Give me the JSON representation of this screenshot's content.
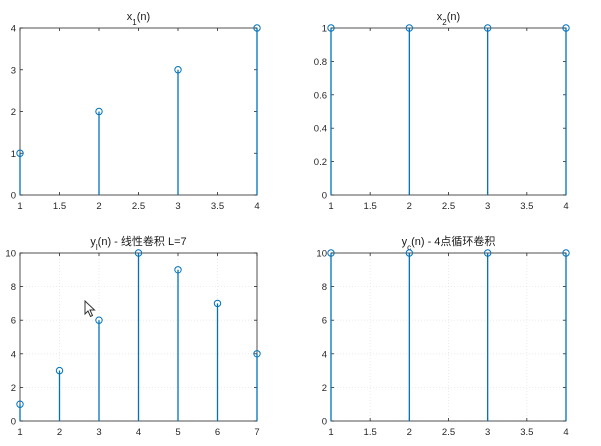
{
  "colors": {
    "stem": "#0072BD",
    "axis": "#262626",
    "grid": "#e6e6e6",
    "background": "#ffffff"
  },
  "chart_data": [
    {
      "type": "stem",
      "title": "x",
      "title_sub": "1",
      "title_tail": "(n)",
      "xlabel": "",
      "ylabel": "",
      "xlim": [
        1,
        4
      ],
      "ylim": [
        0,
        4
      ],
      "xticks": [
        "1",
        "1.5",
        "2",
        "2.5",
        "3",
        "3.5",
        "4"
      ],
      "yticks": [
        "0",
        "1",
        "2",
        "3",
        "4"
      ],
      "grid": false,
      "series": [
        {
          "x": [
            1,
            2,
            3,
            4
          ],
          "values": [
            1,
            2,
            3,
            4
          ]
        }
      ]
    },
    {
      "type": "stem",
      "title": "x",
      "title_sub": "2",
      "title_tail": "(n)",
      "xlabel": "",
      "ylabel": "",
      "xlim": [
        1,
        4
      ],
      "ylim": [
        0,
        1
      ],
      "xticks": [
        "1",
        "1.5",
        "2",
        "2.5",
        "3",
        "3.5",
        "4"
      ],
      "yticks": [
        "0",
        "0.2",
        "0.4",
        "0.6",
        "0.8",
        "1"
      ],
      "grid": false,
      "series": [
        {
          "x": [
            1,
            2,
            3,
            4
          ],
          "values": [
            1,
            1,
            1,
            1
          ]
        }
      ]
    },
    {
      "type": "stem",
      "title": "y",
      "title_sub": "l",
      "title_tail": "(n) - 线性卷积 L=7",
      "xlabel": "",
      "ylabel": "",
      "xlim": [
        1,
        7
      ],
      "ylim": [
        0,
        10
      ],
      "xticks": [
        "1",
        "2",
        "3",
        "4",
        "5",
        "6",
        "7"
      ],
      "yticks": [
        "0",
        "2",
        "4",
        "6",
        "8",
        "10"
      ],
      "grid": true,
      "series": [
        {
          "x": [
            1,
            2,
            3,
            4,
            5,
            6,
            7
          ],
          "values": [
            1,
            3,
            6,
            10,
            9,
            7,
            4
          ]
        }
      ]
    },
    {
      "type": "stem",
      "title": "y",
      "title_sub": "c",
      "title_tail": "(n) - 4点循环卷积",
      "xlabel": "",
      "ylabel": "",
      "xlim": [
        1,
        4
      ],
      "ylim": [
        0,
        10
      ],
      "xticks": [
        "1",
        "1.5",
        "2",
        "2.5",
        "3",
        "3.5",
        "4"
      ],
      "yticks": [
        "0",
        "2",
        "4",
        "6",
        "8",
        "10"
      ],
      "grid": true,
      "series": [
        {
          "x": [
            1,
            2,
            3,
            4
          ],
          "values": [
            10,
            10,
            10,
            10
          ]
        }
      ]
    }
  ]
}
